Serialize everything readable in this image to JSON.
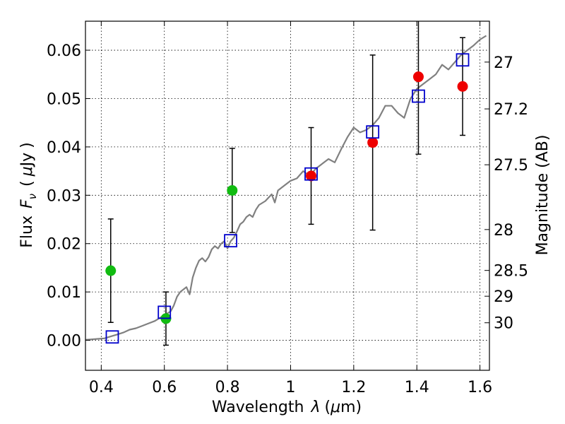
{
  "chart_data": {
    "type": "scatter",
    "xlabel": "Wavelength  λ (μm)",
    "ylabel": "Flux  F_ν  ( μJy )",
    "ylabel_parts": {
      "prefix": "Flux",
      "symbol": "F",
      "subscript": "ν",
      "open": "(",
      "mu": "μ",
      "unit": "Jy",
      "close": ")"
    },
    "xlabel_parts": {
      "prefix": "Wavelength",
      "symbol": "λ",
      "open": "(",
      "mu": "μ",
      "unit": "m)"
    },
    "y2label": "Magnitude (AB)",
    "xlim": [
      0.35,
      1.63
    ],
    "ylim": [
      -0.0062,
      0.066
    ],
    "grid": true,
    "x_ticks": [
      0.4,
      0.6,
      0.8,
      1.0,
      1.2,
      1.4,
      1.6
    ],
    "x_tick_labels": [
      "0.4",
      "0.6",
      "0.8",
      "1",
      "1.2",
      "1.4",
      "1.6"
    ],
    "y_ticks": [
      0.0,
      0.01,
      0.02,
      0.03,
      0.04,
      0.05,
      0.06
    ],
    "y_tick_labels": [
      "0.00",
      "0.01",
      "0.02",
      "0.03",
      "0.04",
      "0.05",
      "0.06"
    ],
    "mag_ticks": [
      {
        "label": "27",
        "value": 27
      },
      {
        "label": "27.2",
        "value": 27.2
      },
      {
        "label": "27.5",
        "value": 27.5
      },
      {
        "label": "28",
        "value": 28
      },
      {
        "label": "28.5",
        "value": 28.5
      },
      {
        "label": "29",
        "value": 29
      },
      {
        "label": "30",
        "value": 30
      }
    ],
    "colors": {
      "model": "#808080",
      "green": "#11bb11",
      "red": "#ee0000",
      "blue": "#0000cc",
      "errorbar": "#000000",
      "grid": "#000000"
    },
    "model_spectrum": {
      "x": [
        0.35,
        0.37,
        0.39,
        0.41,
        0.43,
        0.45,
        0.47,
        0.49,
        0.51,
        0.53,
        0.55,
        0.57,
        0.59,
        0.61,
        0.62,
        0.63,
        0.64,
        0.65,
        0.66,
        0.67,
        0.68,
        0.69,
        0.7,
        0.71,
        0.72,
        0.73,
        0.74,
        0.75,
        0.76,
        0.77,
        0.78,
        0.79,
        0.8,
        0.81,
        0.82,
        0.83,
        0.84,
        0.85,
        0.86,
        0.87,
        0.88,
        0.89,
        0.9,
        0.92,
        0.94,
        0.95,
        0.96,
        0.98,
        1.0,
        1.02,
        1.04,
        1.06,
        1.08,
        1.1,
        1.12,
        1.14,
        1.16,
        1.18,
        1.2,
        1.22,
        1.24,
        1.26,
        1.28,
        1.3,
        1.32,
        1.34,
        1.36,
        1.38,
        1.4,
        1.42,
        1.44,
        1.46,
        1.48,
        1.5,
        1.52,
        1.54,
        1.56,
        1.58,
        1.6,
        1.62
      ],
      "y": [
        0.0001,
        0.0002,
        0.0003,
        0.0004,
        0.0008,
        0.0012,
        0.0016,
        0.0022,
        0.0025,
        0.003,
        0.0035,
        0.004,
        0.0048,
        0.0056,
        0.006,
        0.0072,
        0.009,
        0.01,
        0.0105,
        0.011,
        0.0095,
        0.013,
        0.015,
        0.0165,
        0.017,
        0.0163,
        0.0172,
        0.0188,
        0.0195,
        0.019,
        0.02,
        0.0205,
        0.019,
        0.0205,
        0.0212,
        0.0225,
        0.024,
        0.0245,
        0.0255,
        0.026,
        0.0255,
        0.027,
        0.028,
        0.0288,
        0.0302,
        0.0285,
        0.031,
        0.032,
        0.033,
        0.0335,
        0.035,
        0.034,
        0.0355,
        0.0365,
        0.0375,
        0.0368,
        0.0395,
        0.042,
        0.044,
        0.043,
        0.0435,
        0.0445,
        0.046,
        0.0485,
        0.0485,
        0.047,
        0.046,
        0.05,
        0.052,
        0.053,
        0.054,
        0.055,
        0.057,
        0.056,
        0.0575,
        0.059,
        0.06,
        0.061,
        0.0622,
        0.063
      ]
    },
    "series": [
      {
        "points": [
          {
            "x": 0.43,
            "y": 0.0144,
            "err": 0.0107
          },
          {
            "x": 0.605,
            "y": 0.0045,
            "err": 0.0055
          },
          {
            "x": 0.815,
            "y": 0.031,
            "err": 0.0087
          }
        ]
      },
      {
        "points": [
          {
            "x": 1.065,
            "y": 0.034,
            "err": 0.01
          },
          {
            "x": 1.26,
            "y": 0.0409,
            "err": 0.0181
          },
          {
            "x": 1.405,
            "y": 0.0545,
            "err": 0.016
          },
          {
            "x": 1.545,
            "y": 0.0525,
            "err": 0.0101
          }
        ]
      },
      {
        "points": [
          {
            "x": 0.435,
            "y": 0.0007
          },
          {
            "x": 0.6,
            "y": 0.0058
          },
          {
            "x": 0.81,
            "y": 0.0206
          },
          {
            "x": 1.065,
            "y": 0.0344
          },
          {
            "x": 1.26,
            "y": 0.0431
          },
          {
            "x": 1.405,
            "y": 0.0505
          },
          {
            "x": 1.545,
            "y": 0.058
          }
        ]
      }
    ]
  }
}
